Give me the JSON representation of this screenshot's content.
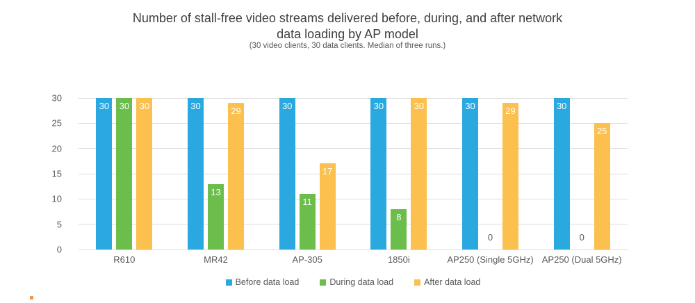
{
  "title": "Number of stall-free video streams delivered before, during, and after network data loading by AP model",
  "subtitle": "(30 video clients, 30 data clients. Median of three runs.)",
  "colors": {
    "before": "#29a9e0",
    "during": "#6cbe4c",
    "after": "#fbc04e",
    "gridline": "#dcdcdc",
    "axis_text": "#595959",
    "title_text": "#3f3f3f",
    "value_label": "#ffffff",
    "zero_label": "#595959"
  },
  "chart_data": {
    "type": "bar",
    "title": "Number of stall-free video streams delivered before, during, and after network data loading by AP model",
    "subtitle": "(30 video clients, 30 data clients. Median of three runs.)",
    "categories": [
      "R610",
      "MR42",
      "AP-305",
      "1850i",
      "AP250 (Single 5GHz)",
      "AP250 (Dual 5GHz)"
    ],
    "series": [
      {
        "name": "Before data load",
        "color_key": "before",
        "values": [
          30,
          30,
          30,
          30,
          30,
          30
        ]
      },
      {
        "name": "During data load",
        "color_key": "during",
        "values": [
          30,
          13,
          11,
          8,
          0,
          0
        ]
      },
      {
        "name": "After data load",
        "color_key": "after",
        "values": [
          30,
          29,
          17,
          30,
          29,
          25
        ]
      }
    ],
    "xlabel": "",
    "ylabel": "",
    "ylim": [
      0,
      30
    ],
    "yticks": [
      0,
      5,
      10,
      15,
      20,
      25,
      30
    ],
    "grid": "horizontal",
    "legend_position": "bottom",
    "value_labels": "inside-top"
  }
}
